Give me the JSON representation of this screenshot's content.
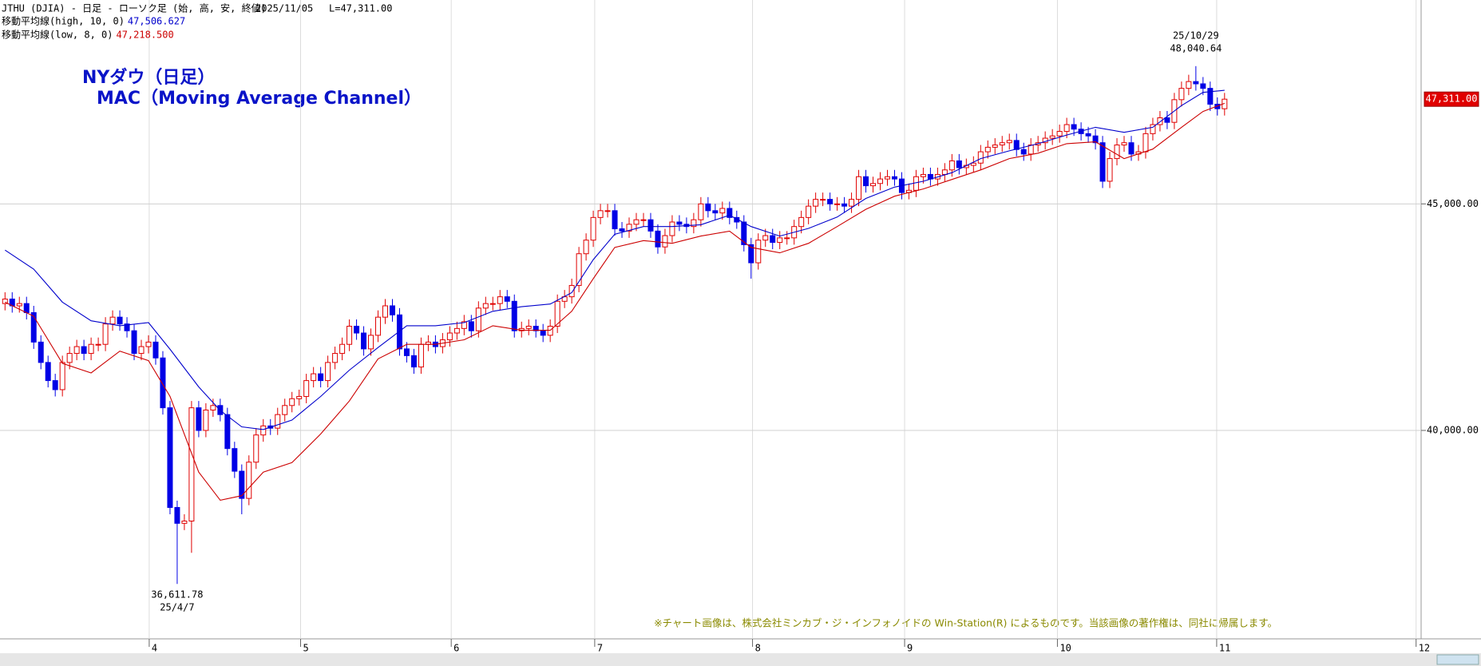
{
  "chart_data": {
    "type": "candlestick",
    "title": "JTHU (DJIA) - 日足 - ローソク足 (始, 高, 安, 終値)",
    "date": "2025/11/05",
    "last_text": "L=47,311.00",
    "annotations": [
      "NYダウ（日足）",
      "MAC（Moving Average Channel）"
    ],
    "high_label": {
      "date": "25/10/29",
      "price": "48,040.64"
    },
    "low_label": {
      "price": "36,611.78",
      "date": "25/4/7"
    },
    "last_label": "47,311.00",
    "note": "※チャート画像は、株式会社ミンカブ・ジ・インフォノイドの Win-Station(R) によるものです。当該画像の著作権は、同社に帰属します。",
    "up_color": "#e00000",
    "down_color": "#0000e6",
    "xlim": [
      -0.7,
      197.4
    ],
    "xticks": [
      {
        "value": 20.1,
        "label": "4"
      },
      {
        "value": 41.2,
        "label": "5"
      },
      {
        "value": 62.2,
        "label": "6"
      },
      {
        "value": 82.2,
        "label": "7"
      },
      {
        "value": 104.2,
        "label": "8"
      },
      {
        "value": 125.4,
        "label": "9"
      },
      {
        "value": 146.7,
        "label": "10"
      },
      {
        "value": 168.9,
        "label": "11"
      },
      {
        "value": 196.7,
        "label": "12"
      }
    ],
    "ylim": [
      35400,
      49500
    ],
    "yticks": [
      {
        "value": 40000,
        "label": "40,000.00"
      },
      {
        "value": 45000,
        "label": "45,000.00"
      }
    ],
    "grid": true,
    "candles": {
      "open": [
        42800,
        42900,
        42750,
        42800,
        42600,
        41950,
        41500,
        41100,
        40900,
        41500,
        41700,
        41850,
        41700,
        41900,
        41900,
        42350,
        42500,
        42350,
        42200,
        41700,
        41850,
        41950,
        41600,
        40500,
        38300,
        37950,
        38000,
        40500,
        40000,
        40450,
        40550,
        40350,
        39600,
        39100,
        38500,
        39300,
        39900,
        40100,
        40050,
        40350,
        40550,
        40700,
        40750,
        41100,
        41250,
        41100,
        41500,
        41700,
        41900,
        42300,
        42150,
        41800,
        42100,
        42500,
        42750,
        42550,
        41800,
        41650,
        41400,
        41900,
        41950,
        41850,
        42000,
        42150,
        42250,
        42400,
        42200,
        42700,
        42800,
        42800,
        42950,
        42850,
        42200,
        42250,
        42300,
        42200,
        42100,
        42300,
        42850,
        42950,
        43200,
        43900,
        44200,
        44700,
        44850,
        44850,
        44450,
        44400,
        44550,
        44650,
        44650,
        44400,
        44050,
        44300,
        44600,
        44550,
        44500,
        44650,
        45000,
        44850,
        44800,
        44900,
        44700,
        44600,
        44100,
        43700,
        44200,
        44300,
        44150,
        44250,
        44250,
        44500,
        44700,
        44950,
        45100,
        45100,
        45000,
        45000,
        44950,
        45100,
        45600,
        45400,
        45450,
        45550,
        45600,
        45550,
        45250,
        45300,
        45600,
        45650,
        45550,
        45650,
        45750,
        45950,
        45800,
        45850,
        45900,
        46150,
        46250,
        46300,
        46350,
        46400,
        46200,
        46100,
        46300,
        46350,
        46450,
        46500,
        46600,
        46750,
        46650,
        46550,
        46500,
        46350,
        45500,
        46000,
        46300,
        46350,
        46100,
        46150,
        46550,
        46750,
        46900,
        46800,
        47300,
        47550,
        47700,
        47650,
        47550,
        47200,
        47100
      ],
      "high": [
        43050,
        43050,
        42950,
        42950,
        42750,
        42100,
        41650,
        41250,
        41650,
        41850,
        42000,
        42000,
        42050,
        42050,
        42500,
        42650,
        42650,
        42500,
        42350,
        42000,
        42100,
        42100,
        41750,
        40650,
        38450,
        38150,
        40650,
        40650,
        40600,
        40700,
        40700,
        40500,
        39750,
        39250,
        39450,
        40050,
        40250,
        40250,
        40500,
        40700,
        40850,
        40900,
        41250,
        41400,
        41400,
        41650,
        41850,
        42050,
        42450,
        42450,
        42300,
        42250,
        42650,
        42900,
        42900,
        42700,
        41950,
        41800,
        42050,
        42100,
        42100,
        42150,
        42300,
        42400,
        42550,
        42550,
        42850,
        42950,
        42950,
        43100,
        43100,
        43000,
        42400,
        42450,
        42450,
        42350,
        42450,
        43000,
        43100,
        43350,
        44050,
        44350,
        44850,
        45000,
        45000,
        45000,
        44600,
        44700,
        44800,
        44800,
        44800,
        44550,
        44450,
        44750,
        44750,
        44700,
        44800,
        45150,
        45150,
        45000,
        45050,
        45050,
        44850,
        44750,
        44250,
        44350,
        44450,
        44450,
        44400,
        44400,
        44650,
        44850,
        45100,
        45250,
        45250,
        45250,
        45150,
        45150,
        45250,
        45750,
        45750,
        45600,
        45700,
        45750,
        45750,
        45700,
        45450,
        45750,
        45800,
        45800,
        45800,
        45900,
        46100,
        46100,
        46000,
        46050,
        46300,
        46400,
        46450,
        46500,
        46550,
        46550,
        46350,
        46450,
        46500,
        46600,
        46650,
        46750,
        46900,
        46900,
        46800,
        46700,
        46650,
        46500,
        46150,
        46450,
        46500,
        46500,
        46300,
        46700,
        46900,
        47050,
        47050,
        47450,
        47700,
        47850,
        48040.64,
        47800,
        47700,
        47350,
        47450
      ],
      "low": [
        42650,
        42600,
        42600,
        42450,
        41800,
        41350,
        40950,
        40750,
        40750,
        41350,
        41550,
        41550,
        41550,
        41750,
        41750,
        42200,
        42200,
        42050,
        41550,
        41550,
        41700,
        41450,
        40350,
        38150,
        36611.78,
        37800,
        37300,
        39850,
        39850,
        40300,
        40200,
        39450,
        38950,
        38150,
        38350,
        39150,
        39750,
        39900,
        39900,
        40200,
        40400,
        40550,
        40600,
        40950,
        40950,
        40950,
        41350,
        41550,
        41750,
        42000,
        41650,
        41650,
        41950,
        42350,
        42400,
        41650,
        41500,
        41250,
        41250,
        41750,
        41700,
        41700,
        41850,
        42000,
        42100,
        42050,
        42050,
        42550,
        42650,
        42650,
        42700,
        42050,
        42050,
        42100,
        42050,
        41950,
        41950,
        42150,
        42700,
        42800,
        43050,
        43750,
        44050,
        44550,
        44700,
        44300,
        44250,
        44250,
        44400,
        44500,
        44250,
        43900,
        43900,
        44150,
        44400,
        44350,
        44350,
        44500,
        44700,
        44650,
        44650,
        44550,
        44450,
        43950,
        43350,
        43550,
        44050,
        44000,
        44000,
        44100,
        44100,
        44350,
        44550,
        44800,
        44950,
        44850,
        44850,
        44800,
        44800,
        44950,
        45250,
        45250,
        45300,
        45400,
        45400,
        45100,
        45100,
        45150,
        45450,
        45400,
        45400,
        45500,
        45600,
        45650,
        45650,
        45700,
        45750,
        46000,
        46100,
        46150,
        46200,
        46050,
        45950,
        45950,
        46150,
        46200,
        46300,
        46350,
        46450,
        46500,
        46400,
        46350,
        46200,
        45350,
        45350,
        45850,
        46150,
        45950,
        45950,
        46000,
        46400,
        46600,
        46650,
        46650,
        47150,
        47400,
        47500,
        47400,
        47050,
        46950,
        46950
      ],
      "close": [
        42900,
        42750,
        42800,
        42600,
        41950,
        41500,
        41100,
        40900,
        41500,
        41700,
        41850,
        41700,
        41900,
        41900,
        42350,
        42500,
        42350,
        42200,
        41700,
        41850,
        41950,
        41600,
        40500,
        38300,
        37950,
        38000,
        40500,
        40000,
        40450,
        40550,
        40350,
        39600,
        39100,
        38500,
        39300,
        39900,
        40100,
        40050,
        40350,
        40550,
        40700,
        40750,
        41100,
        41250,
        41100,
        41500,
        41700,
        41900,
        42300,
        42150,
        41800,
        42100,
        42500,
        42750,
        42550,
        41800,
        41650,
        41400,
        41900,
        41950,
        41850,
        42000,
        42150,
        42250,
        42400,
        42200,
        42700,
        42800,
        42800,
        42950,
        42850,
        42200,
        42250,
        42300,
        42200,
        42100,
        42300,
        42850,
        42950,
        43200,
        43900,
        44200,
        44700,
        44850,
        44850,
        44450,
        44400,
        44550,
        44650,
        44650,
        44400,
        44050,
        44300,
        44600,
        44550,
        44500,
        44650,
        45000,
        44850,
        44800,
        44900,
        44700,
        44600,
        44100,
        43700,
        44200,
        44300,
        44150,
        44250,
        44250,
        44500,
        44700,
        44950,
        45100,
        45100,
        45000,
        45000,
        44950,
        45100,
        45600,
        45400,
        45450,
        45550,
        45600,
        45550,
        45250,
        45300,
        45600,
        45650,
        45550,
        45650,
        45750,
        45950,
        45800,
        45850,
        45900,
        46150,
        46250,
        46300,
        46350,
        46400,
        46200,
        46100,
        46300,
        46350,
        46450,
        46500,
        46600,
        46750,
        46650,
        46550,
        46500,
        46350,
        45500,
        46000,
        46300,
        46350,
        46100,
        46150,
        46550,
        46750,
        46900,
        46800,
        47300,
        47550,
        47700,
        47650,
        47550,
        47200,
        47100,
        47311
      ]
    },
    "series": [
      {
        "name": "移動平均線(high, 10, 0)",
        "legend_value": "47,506.627",
        "color": "#0000cc",
        "x": [
          0,
          4,
          8,
          12,
          16,
          20,
          23,
          27,
          30,
          33,
          36,
          40,
          44,
          48,
          52,
          56,
          60,
          64,
          68,
          72,
          76,
          79,
          82,
          85,
          89,
          93,
          97,
          101,
          104,
          108,
          112,
          116,
          120,
          124,
          128,
          132,
          136,
          140,
          144,
          148,
          152,
          156,
          160,
          164,
          167,
          170
        ],
        "values": [
          43980,
          43560,
          42830,
          42420,
          42310,
          42380,
          41790,
          40960,
          40440,
          40080,
          40020,
          40230,
          40750,
          41330,
          41830,
          42310,
          42310,
          42380,
          42630,
          42730,
          42790,
          43040,
          43770,
          44330,
          44500,
          44500,
          44540,
          44750,
          44500,
          44290,
          44460,
          44710,
          45120,
          45370,
          45500,
          45690,
          46000,
          46170,
          46330,
          46520,
          46690,
          46580,
          46690,
          47170,
          47460,
          47506.627
        ]
      },
      {
        "name": "移動平均線(low, 8, 0)",
        "legend_value": "47,218.500",
        "color": "#cc0000",
        "x": [
          0,
          4,
          8,
          12,
          16,
          20,
          23,
          27,
          30,
          33,
          36,
          40,
          44,
          48,
          52,
          56,
          60,
          64,
          68,
          72,
          76,
          79,
          82,
          85,
          89,
          93,
          97,
          101,
          104,
          108,
          112,
          116,
          120,
          124,
          128,
          132,
          136,
          140,
          144,
          148,
          152,
          156,
          160,
          164,
          167,
          170
        ],
        "values": [
          42830,
          42520,
          41480,
          41270,
          41750,
          41540,
          40750,
          39080,
          38460,
          38560,
          39080,
          39290,
          39920,
          40650,
          41580,
          41900,
          41900,
          42000,
          42310,
          42210,
          42210,
          42630,
          43350,
          44040,
          44190,
          44130,
          44290,
          44400,
          44040,
          43920,
          44130,
          44500,
          44880,
          45170,
          45330,
          45540,
          45750,
          46000,
          46120,
          46330,
          46370,
          46000,
          46210,
          46690,
          47040,
          47218.5
        ]
      }
    ]
  }
}
